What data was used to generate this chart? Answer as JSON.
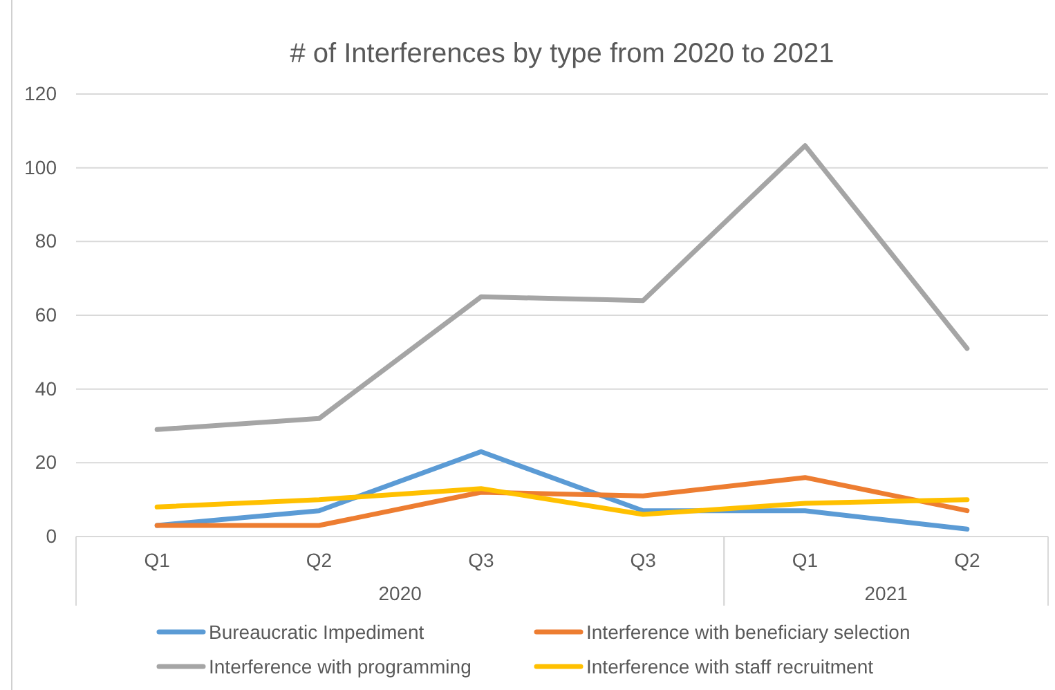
{
  "chart_data": {
    "type": "line",
    "title": "# of Interferences by type from 2020 to 2021",
    "categories": [
      "Q1",
      "Q2",
      "Q3",
      "Q3",
      "Q1",
      "Q2"
    ],
    "series": [
      {
        "name": "Bureaucratic Impediment",
        "color": "#5b9bd5",
        "values": [
          3,
          7,
          23,
          7,
          7,
          2
        ]
      },
      {
        "name": "Interference with beneficiary selection",
        "color": "#ed7d31",
        "values": [
          3,
          3,
          12,
          11,
          16,
          7
        ]
      },
      {
        "name": "Interference with programming",
        "color": "#a5a5a5",
        "values": [
          29,
          32,
          65,
          64,
          106,
          51
        ]
      },
      {
        "name": "Interference with staff recruitment",
        "color": "#ffc000",
        "values": [
          8,
          10,
          13,
          6,
          9,
          10
        ]
      }
    ],
    "ylim": [
      0,
      120
    ],
    "yticks": [
      0,
      20,
      40,
      60,
      80,
      100,
      120
    ],
    "grid": "y",
    "legend": "bottom",
    "marker": "none",
    "line_style": "solid",
    "annotations": [
      "2020",
      "2021"
    ]
  }
}
